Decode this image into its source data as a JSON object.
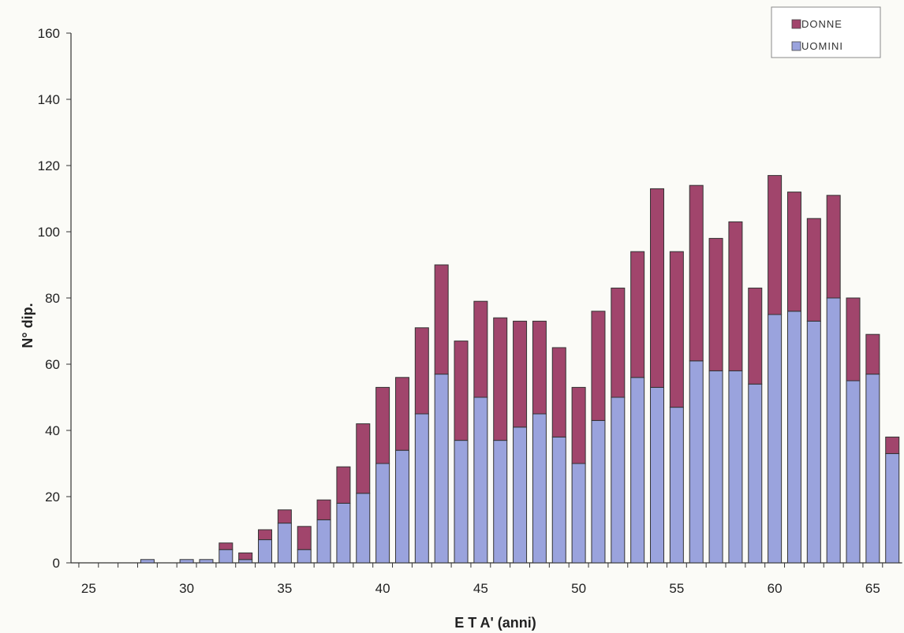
{
  "chart_data": {
    "type": "bar",
    "stacked": true,
    "xlabel": "E  T  A' (anni)",
    "ylabel": "N° dip.",
    "ylim": [
      0,
      160
    ],
    "yticks": [
      0,
      20,
      40,
      60,
      80,
      100,
      120,
      140,
      160
    ],
    "xticks": [
      25,
      30,
      35,
      40,
      45,
      50,
      55,
      60,
      65
    ],
    "x": [
      25,
      26,
      27,
      28,
      29,
      30,
      31,
      32,
      33,
      34,
      35,
      36,
      37,
      38,
      39,
      40,
      41,
      42,
      43,
      44,
      45,
      46,
      47,
      48,
      49,
      50,
      51,
      52,
      53,
      54,
      55,
      56,
      57,
      58,
      59,
      60,
      61,
      62,
      63,
      64,
      65,
      66
    ],
    "series": [
      {
        "name": "UOMINI",
        "color": "#9aa3dd",
        "values": [
          0,
          0,
          0,
          1,
          0,
          1,
          1,
          4,
          1,
          7,
          12,
          4,
          13,
          18,
          21,
          30,
          34,
          45,
          57,
          37,
          50,
          37,
          41,
          45,
          38,
          30,
          43,
          50,
          56,
          53,
          47,
          61,
          58,
          58,
          54,
          75,
          76,
          73,
          80,
          55,
          57,
          33
        ]
      },
      {
        "name": "DONNE",
        "color": "#a1456c",
        "values": [
          0,
          0,
          0,
          0,
          0,
          0,
          0,
          2,
          2,
          3,
          4,
          7,
          6,
          11,
          21,
          23,
          22,
          26,
          33,
          30,
          29,
          37,
          32,
          28,
          27,
          23,
          33,
          33,
          38,
          60,
          47,
          53,
          40,
          45,
          29,
          42,
          36,
          31,
          31,
          25,
          12,
          5
        ]
      }
    ],
    "legend": {
      "position": "top-right",
      "entries": [
        "DONNE",
        "UOMINI"
      ]
    },
    "grid": false
  }
}
